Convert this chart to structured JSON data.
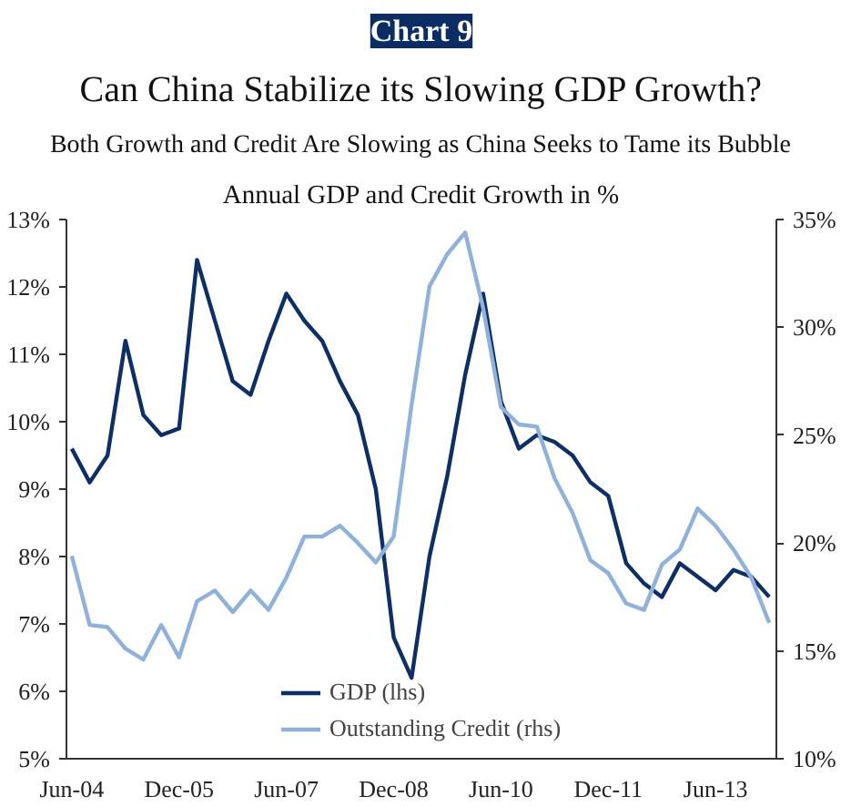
{
  "chart_data": {
    "type": "line",
    "title": "Can China Stabilize its Slowing GDP Growth?",
    "subtitle": "Both Growth and Credit Are Slowing as China Seeks to Tame its Bubble",
    "annotations": [
      "Chart 9",
      "Annual GDP and Credit Growth in %"
    ],
    "categories": [
      "Jun-04",
      null,
      null,
      null,
      null,
      null,
      "Dec-05",
      null,
      null,
      null,
      null,
      null,
      "Jun-07",
      null,
      null,
      null,
      null,
      null,
      "Dec-08",
      null,
      null,
      null,
      null,
      null,
      "Jun-10",
      null,
      null,
      null,
      null,
      null,
      "Dec-11",
      null,
      null,
      null,
      null,
      null,
      "Jun-13",
      null,
      null,
      null
    ],
    "series": [
      {
        "name": "GDP (lhs)",
        "color": "#0d2f66",
        "values": [
          9.6,
          9.1,
          9.5,
          11.2,
          10.1,
          9.8,
          9.9,
          12.4,
          11.5,
          10.6,
          10.4,
          11.2,
          11.9,
          11.5,
          11.2,
          10.6,
          10.1,
          9.0,
          6.8,
          6.2,
          8.0,
          9.2,
          10.7,
          11.9,
          10.3,
          9.6,
          9.8,
          9.7,
          9.5,
          9.1,
          8.9,
          7.9,
          7.6,
          7.4,
          7.9,
          7.7,
          7.5,
          7.8,
          7.7,
          7.4
        ]
      },
      {
        "name": "Outstanding Credit (rhs)",
        "color": "#8fb1da",
        "axis": "y2",
        "values": [
          19.4,
          16.2,
          16.1,
          15.1,
          14.6,
          16.2,
          14.7,
          17.3,
          17.8,
          16.8,
          17.8,
          16.9,
          18.4,
          20.3,
          20.3,
          20.8,
          20.0,
          19.1,
          20.3,
          26.4,
          31.9,
          33.4,
          34.4,
          30.9,
          26.3,
          25.5,
          25.4,
          23.0,
          21.4,
          19.2,
          18.6,
          17.2,
          16.9,
          19.0,
          19.7,
          21.6,
          20.8,
          19.7,
          18.4,
          16.3
        ]
      }
    ],
    "ylim": [
      5,
      13
    ],
    "yticks": [
      {
        "value": 5,
        "label": "5%"
      },
      {
        "value": 6,
        "label": "6%"
      },
      {
        "value": 7,
        "label": "7%"
      },
      {
        "value": 8,
        "label": "8%"
      },
      {
        "value": 9,
        "label": "9%"
      },
      {
        "value": 10,
        "label": "10%"
      },
      {
        "value": 11,
        "label": "11%"
      },
      {
        "value": 12,
        "label": "12%"
      },
      {
        "value": 13,
        "label": "13%"
      }
    ],
    "y2lim": [
      10,
      35
    ],
    "y2ticks": [
      {
        "value": 10,
        "label": "10%"
      },
      {
        "value": 15,
        "label": "15%"
      },
      {
        "value": 20,
        "label": "20%"
      },
      {
        "value": 25,
        "label": "25%"
      },
      {
        "value": 30,
        "label": "30%"
      },
      {
        "value": 35,
        "label": "35%"
      }
    ],
    "grid": false,
    "legend": "bottom",
    "line_style": "solid"
  }
}
